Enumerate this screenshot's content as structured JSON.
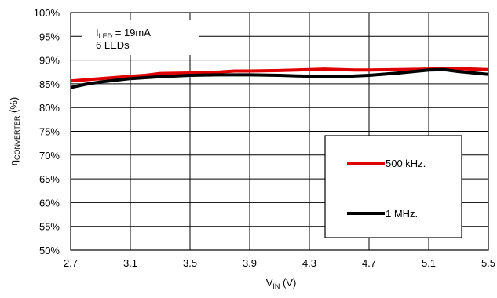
{
  "chart_data": {
    "type": "line",
    "xlabel": {
      "main": "V",
      "sub": "IN",
      "unit": " (V)"
    },
    "ylabel": {
      "main": "η",
      "sub": "CONVERTER",
      "unit": " (%)"
    },
    "xlim": [
      2.7,
      5.5
    ],
    "ylim": [
      50,
      100
    ],
    "x_ticks": [
      "2.7",
      "3.1",
      "3.5",
      "3.9",
      "4.3",
      "4.7",
      "5.1",
      "5.5"
    ],
    "y_ticks": [
      "50%",
      "55%",
      "60%",
      "65%",
      "70%",
      "75%",
      "80%",
      "85%",
      "90%",
      "95%",
      "100%"
    ],
    "grid": true,
    "annotation": {
      "line1_main": "I",
      "line1_sub": "LED",
      "line1_rest": " = 19mA",
      "line2": "6 LEDs"
    },
    "legend_position": "bottom-right",
    "series": [
      {
        "name": "500 kHz.",
        "color": "#e00000",
        "points": [
          [
            2.7,
            85.6
          ],
          [
            2.9,
            86.1
          ],
          [
            3.1,
            86.6
          ],
          [
            3.2,
            86.8
          ],
          [
            3.3,
            87.2
          ],
          [
            3.5,
            87.3
          ],
          [
            3.7,
            87.5
          ],
          [
            3.8,
            87.7
          ],
          [
            3.9,
            87.7
          ],
          [
            4.1,
            87.8
          ],
          [
            4.3,
            88.0
          ],
          [
            4.4,
            88.1
          ],
          [
            4.6,
            87.9
          ],
          [
            4.7,
            87.9
          ],
          [
            4.9,
            88.0
          ],
          [
            5.1,
            88.1
          ],
          [
            5.2,
            88.2
          ],
          [
            5.3,
            88.2
          ],
          [
            5.5,
            88.0
          ]
        ]
      },
      {
        "name": "1 MHz.",
        "color": "#000000",
        "points": [
          [
            2.7,
            84.2
          ],
          [
            2.8,
            84.9
          ],
          [
            2.9,
            85.4
          ],
          [
            3.1,
            86.1
          ],
          [
            3.3,
            86.5
          ],
          [
            3.5,
            86.8
          ],
          [
            3.7,
            86.9
          ],
          [
            3.9,
            86.9
          ],
          [
            4.1,
            86.8
          ],
          [
            4.3,
            86.6
          ],
          [
            4.5,
            86.5
          ],
          [
            4.7,
            86.8
          ],
          [
            4.9,
            87.3
          ],
          [
            5.1,
            87.9
          ],
          [
            5.2,
            88.0
          ],
          [
            5.3,
            87.6
          ],
          [
            5.5,
            87.0
          ]
        ]
      }
    ]
  }
}
